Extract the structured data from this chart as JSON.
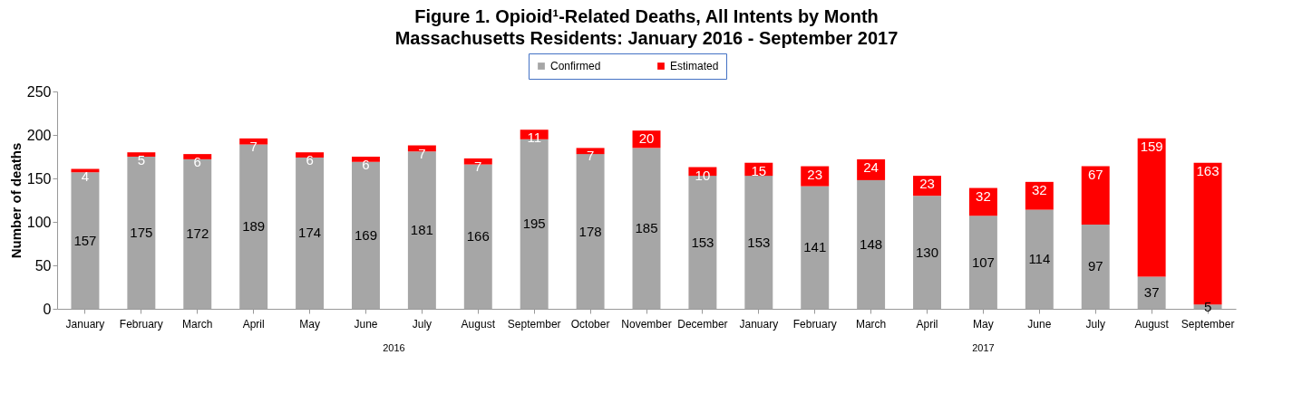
{
  "chart_data": {
    "type": "bar",
    "title": "Figure 1. Opioid¹-Related Deaths, All Intents by Month",
    "subtitle": "Massachusetts Residents: January 2016 - September 2017",
    "ylabel": "Number of deaths",
    "categories": [
      "January",
      "February",
      "March",
      "April",
      "May",
      "June",
      "July",
      "August",
      "September",
      "October",
      "November",
      "December",
      "January",
      "February",
      "March",
      "April",
      "May",
      "June",
      "July",
      "August",
      "September"
    ],
    "series": [
      {
        "name": "Confirmed",
        "color": "#a6a6a6",
        "values": [
          157,
          175,
          172,
          189,
          174,
          169,
          181,
          166,
          195,
          178,
          185,
          153,
          153,
          141,
          148,
          130,
          107,
          114,
          97,
          37,
          5
        ]
      },
      {
        "name": "Estimated",
        "color": "#ff0000",
        "values": [
          4,
          5,
          6,
          7,
          6,
          6,
          7,
          7,
          11,
          7,
          20,
          10,
          15,
          23,
          24,
          23,
          32,
          32,
          67,
          159,
          163
        ]
      }
    ],
    "stacked": true,
    "data_labels": true,
    "ylim": [
      0,
      250
    ],
    "yticks": [
      0,
      50,
      100,
      150,
      200,
      250
    ],
    "grid": false,
    "legend": "top",
    "annotations": [
      "2016",
      "2017"
    ]
  }
}
